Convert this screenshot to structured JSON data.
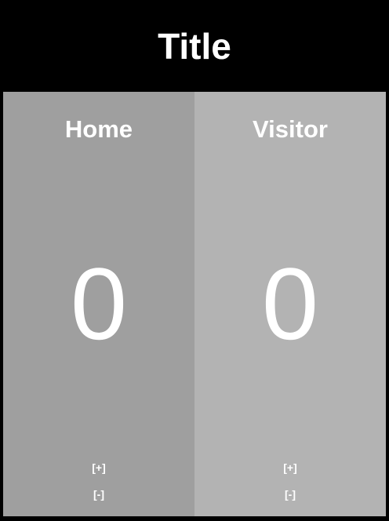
{
  "title": "Title",
  "home": {
    "name": "Home",
    "score": "0",
    "increment_label": "[+]",
    "decrement_label": "[-]",
    "color": "#9f9f9f"
  },
  "visitor": {
    "name": "Visitor",
    "score": "0",
    "increment_label": "[+]",
    "decrement_label": "[-]",
    "color": "#b3b3b3"
  }
}
